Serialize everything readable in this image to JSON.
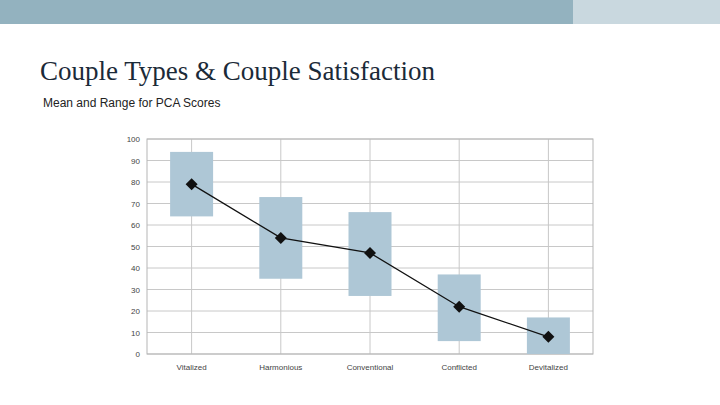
{
  "chart_data": {
    "type": "range_bar",
    "title": "Couple Types & Couple Satisfaction",
    "subtitle": "Mean and Range for PCA Scores",
    "categories": [
      "Vitalized",
      "Harmonious",
      "Conventional",
      "Conflicted",
      "Devitalized"
    ],
    "values": [
      79,
      54,
      47,
      22,
      8
    ],
    "low": [
      64,
      35,
      27,
      6,
      0
    ],
    "high": [
      94,
      73,
      66,
      37,
      17
    ],
    "color": "#aec7d6",
    "marker": "diamond",
    "ylim": [
      0,
      100
    ],
    "yticks": [
      0,
      10,
      20,
      30,
      40,
      50,
      60,
      70,
      80,
      90,
      100
    ],
    "grid": true
  }
}
